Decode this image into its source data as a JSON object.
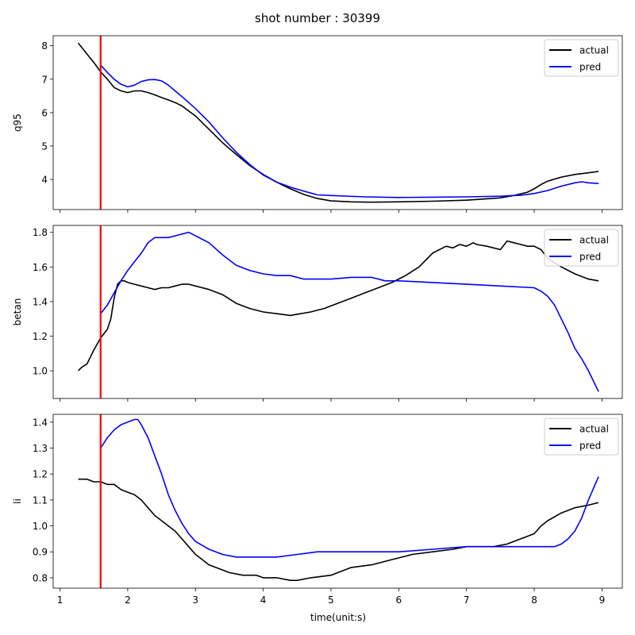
{
  "figure": {
    "suptitle": "shot number : 30399",
    "xlabel": "time(unit:s)"
  },
  "colors": {
    "actual": "#000000",
    "pred": "#0000ff",
    "marker": "#ff0000"
  },
  "chart_data": [
    {
      "type": "line",
      "ylabel": "q95",
      "xlim": [
        0.9,
        9.3
      ],
      "ylim": [
        3.1,
        8.3
      ],
      "yticks": [
        4,
        5,
        6,
        7,
        8
      ],
      "xticks": [
        1,
        2,
        3,
        4,
        5,
        6,
        7,
        8,
        9
      ],
      "show_xticklabels": false,
      "legend_position": "top-right",
      "marker_x": 1.6,
      "series": [
        {
          "name": "actual",
          "color": "#000000",
          "x": [
            1.27,
            1.4,
            1.5,
            1.6,
            1.7,
            1.8,
            1.9,
            2.0,
            2.1,
            2.2,
            2.3,
            2.4,
            2.5,
            2.6,
            2.7,
            2.8,
            2.9,
            3.0,
            3.2,
            3.4,
            3.6,
            3.8,
            4.0,
            4.2,
            4.4,
            4.6,
            4.8,
            5.0,
            5.3,
            5.6,
            6.0,
            6.5,
            7.0,
            7.5,
            7.7,
            7.9,
            8.0,
            8.1,
            8.2,
            8.4,
            8.6,
            8.8,
            8.95
          ],
          "y": [
            8.08,
            7.75,
            7.5,
            7.22,
            7.0,
            6.75,
            6.65,
            6.6,
            6.65,
            6.65,
            6.6,
            6.53,
            6.45,
            6.38,
            6.3,
            6.2,
            6.05,
            5.9,
            5.5,
            5.1,
            4.75,
            4.42,
            4.15,
            3.92,
            3.72,
            3.55,
            3.43,
            3.36,
            3.33,
            3.32,
            3.33,
            3.35,
            3.38,
            3.45,
            3.52,
            3.62,
            3.72,
            3.85,
            3.95,
            4.07,
            4.15,
            4.2,
            4.24
          ]
        },
        {
          "name": "pred",
          "color": "#0000ff",
          "x": [
            1.6,
            1.7,
            1.8,
            1.9,
            2.0,
            2.1,
            2.2,
            2.3,
            2.4,
            2.5,
            2.6,
            2.7,
            2.8,
            2.9,
            3.0,
            3.2,
            3.4,
            3.6,
            3.8,
            4.0,
            4.2,
            4.4,
            4.6,
            4.8,
            5.0,
            5.5,
            6.0,
            6.5,
            7.0,
            7.5,
            7.8,
            8.0,
            8.2,
            8.4,
            8.6,
            8.7,
            8.8,
            8.95
          ],
          "y": [
            7.42,
            7.2,
            7.0,
            6.85,
            6.77,
            6.82,
            6.93,
            6.98,
            6.99,
            6.95,
            6.82,
            6.65,
            6.48,
            6.3,
            6.12,
            5.72,
            5.25,
            4.82,
            4.45,
            4.13,
            3.92,
            3.77,
            3.65,
            3.54,
            3.52,
            3.48,
            3.46,
            3.47,
            3.48,
            3.5,
            3.53,
            3.58,
            3.67,
            3.8,
            3.9,
            3.93,
            3.9,
            3.88
          ]
        }
      ]
    },
    {
      "type": "line",
      "ylabel": "betan",
      "xlim": [
        0.9,
        9.3
      ],
      "ylim": [
        0.84,
        1.84
      ],
      "yticks": [
        1.0,
        1.2,
        1.4,
        1.6,
        1.8
      ],
      "ytick_labels": [
        "1.0",
        "1.2",
        "1.4",
        "1.6",
        "1.8"
      ],
      "xticks": [
        1,
        2,
        3,
        4,
        5,
        6,
        7,
        8,
        9
      ],
      "show_xticklabels": false,
      "legend_position": "top-right",
      "marker_x": 1.6,
      "series": [
        {
          "name": "actual",
          "color": "#000000",
          "x": [
            1.27,
            1.32,
            1.4,
            1.45,
            1.5,
            1.6,
            1.7,
            1.75,
            1.8,
            1.85,
            1.9,
            1.95,
            2.0,
            2.1,
            2.2,
            2.3,
            2.4,
            2.5,
            2.6,
            2.7,
            2.8,
            2.9,
            3.0,
            3.2,
            3.4,
            3.6,
            3.8,
            4.0,
            4.2,
            4.4,
            4.55,
            4.7,
            4.9,
            5.1,
            5.3,
            5.5,
            5.7,
            5.9,
            6.1,
            6.3,
            6.5,
            6.7,
            6.8,
            6.9,
            7.0,
            7.1,
            7.15,
            7.3,
            7.4,
            7.5,
            7.6,
            7.7,
            7.8,
            7.9,
            8.0,
            8.1,
            8.2,
            8.4,
            8.6,
            8.8,
            8.95
          ],
          "y": [
            1.0,
            1.02,
            1.04,
            1.08,
            1.12,
            1.19,
            1.24,
            1.3,
            1.42,
            1.5,
            1.52,
            1.52,
            1.51,
            1.5,
            1.49,
            1.48,
            1.47,
            1.48,
            1.48,
            1.49,
            1.5,
            1.5,
            1.49,
            1.47,
            1.44,
            1.39,
            1.36,
            1.34,
            1.33,
            1.32,
            1.33,
            1.34,
            1.36,
            1.39,
            1.42,
            1.45,
            1.48,
            1.51,
            1.55,
            1.6,
            1.68,
            1.72,
            1.71,
            1.73,
            1.72,
            1.74,
            1.73,
            1.72,
            1.71,
            1.7,
            1.75,
            1.74,
            1.73,
            1.72,
            1.72,
            1.7,
            1.65,
            1.6,
            1.56,
            1.53,
            1.52
          ]
        },
        {
          "name": "pred",
          "color": "#0000ff",
          "x": [
            1.6,
            1.7,
            1.8,
            1.9,
            2.0,
            2.1,
            2.2,
            2.3,
            2.4,
            2.5,
            2.6,
            2.7,
            2.8,
            2.9,
            3.0,
            3.2,
            3.4,
            3.6,
            3.8,
            4.0,
            4.2,
            4.4,
            4.6,
            4.8,
            5.0,
            5.3,
            5.6,
            5.8,
            6.0,
            6.5,
            7.0,
            7.5,
            8.0,
            8.1,
            8.2,
            8.3,
            8.4,
            8.5,
            8.6,
            8.7,
            8.8,
            8.95
          ],
          "y": [
            1.33,
            1.38,
            1.45,
            1.52,
            1.58,
            1.63,
            1.68,
            1.74,
            1.77,
            1.77,
            1.77,
            1.78,
            1.79,
            1.8,
            1.78,
            1.74,
            1.67,
            1.61,
            1.58,
            1.56,
            1.55,
            1.55,
            1.53,
            1.53,
            1.53,
            1.54,
            1.54,
            1.52,
            1.52,
            1.51,
            1.5,
            1.49,
            1.48,
            1.46,
            1.43,
            1.38,
            1.3,
            1.22,
            1.13,
            1.07,
            1.0,
            0.88
          ]
        }
      ]
    },
    {
      "type": "line",
      "ylabel": "li",
      "xlim": [
        0.9,
        9.3
      ],
      "ylim": [
        0.76,
        1.43
      ],
      "yticks": [
        0.8,
        0.9,
        1.0,
        1.1,
        1.2,
        1.3,
        1.4
      ],
      "ytick_labels": [
        "0.8",
        "0.9",
        "1.0",
        "1.1",
        "1.2",
        "1.3",
        "1.4"
      ],
      "xticks": [
        1,
        2,
        3,
        4,
        5,
        6,
        7,
        8,
        9
      ],
      "xtick_labels": [
        "1",
        "2",
        "3",
        "4",
        "5",
        "6",
        "7",
        "8",
        "9"
      ],
      "show_xticklabels": true,
      "legend_position": "top-right",
      "marker_x": 1.6,
      "series": [
        {
          "name": "actual",
          "color": "#000000",
          "x": [
            1.27,
            1.4,
            1.5,
            1.6,
            1.7,
            1.75,
            1.8,
            1.85,
            1.9,
            2.0,
            2.1,
            2.2,
            2.3,
            2.4,
            2.5,
            2.6,
            2.7,
            2.8,
            2.9,
            3.0,
            3.1,
            3.2,
            3.3,
            3.5,
            3.7,
            3.9,
            4.0,
            4.2,
            4.4,
            4.5,
            4.7,
            5.0,
            5.3,
            5.6,
            5.9,
            6.2,
            6.5,
            6.8,
            7.0,
            7.2,
            7.4,
            7.6,
            7.8,
            8.0,
            8.1,
            8.2,
            8.4,
            8.6,
            8.8,
            8.95
          ],
          "y": [
            1.18,
            1.18,
            1.17,
            1.17,
            1.16,
            1.16,
            1.16,
            1.15,
            1.14,
            1.13,
            1.12,
            1.1,
            1.07,
            1.04,
            1.02,
            1.0,
            0.98,
            0.95,
            0.92,
            0.89,
            0.87,
            0.85,
            0.84,
            0.82,
            0.81,
            0.81,
            0.8,
            0.8,
            0.79,
            0.79,
            0.8,
            0.81,
            0.84,
            0.85,
            0.87,
            0.89,
            0.9,
            0.91,
            0.92,
            0.92,
            0.92,
            0.93,
            0.95,
            0.97,
            1.0,
            1.02,
            1.05,
            1.07,
            1.08,
            1.09
          ]
        },
        {
          "name": "pred",
          "color": "#0000ff",
          "x": [
            1.6,
            1.7,
            1.8,
            1.9,
            2.0,
            2.1,
            2.15,
            2.2,
            2.3,
            2.4,
            2.5,
            2.6,
            2.7,
            2.8,
            2.9,
            3.0,
            3.2,
            3.4,
            3.6,
            3.8,
            4.0,
            4.2,
            4.5,
            4.8,
            5.0,
            5.5,
            6.0,
            6.5,
            7.0,
            7.5,
            8.0,
            8.2,
            8.3,
            8.4,
            8.5,
            8.6,
            8.7,
            8.8,
            8.95
          ],
          "y": [
            1.3,
            1.34,
            1.37,
            1.39,
            1.4,
            1.41,
            1.41,
            1.39,
            1.34,
            1.27,
            1.2,
            1.12,
            1.06,
            1.01,
            0.97,
            0.94,
            0.91,
            0.89,
            0.88,
            0.88,
            0.88,
            0.88,
            0.89,
            0.9,
            0.9,
            0.9,
            0.9,
            0.91,
            0.92,
            0.92,
            0.92,
            0.92,
            0.92,
            0.93,
            0.95,
            0.98,
            1.03,
            1.1,
            1.19
          ]
        }
      ]
    }
  ]
}
